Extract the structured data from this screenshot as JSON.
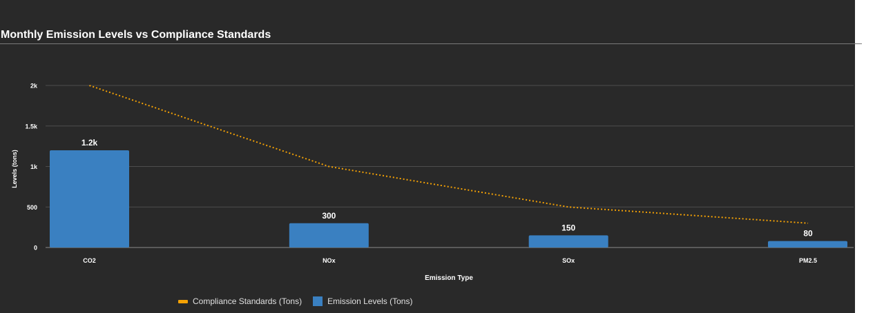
{
  "colors": {
    "background": "#292929",
    "bar": "#3a80c1",
    "line": "#f5a205",
    "grid": "#4d4d4d",
    "text": "#ffffff"
  },
  "chart_data": {
    "type": "bar",
    "title": "Monthly Emission Levels vs Compliance Standards",
    "xlabel": "Emission Type",
    "ylabel": "Levels (tons)",
    "categories": [
      "CO2",
      "NOx",
      "SOx",
      "PM2.5"
    ],
    "ylim": [
      0,
      2000
    ],
    "yticks": [
      0,
      500,
      1000,
      1500,
      2000
    ],
    "ytick_labels": [
      "0",
      "500",
      "1k",
      "1.5k",
      "2k"
    ],
    "grid": true,
    "legend_position": "bottom-left",
    "series": [
      {
        "name": "Emission Levels (Tons)",
        "type": "bar",
        "values": [
          1200,
          300,
          150,
          80
        ],
        "data_labels": [
          "1.2k",
          "300",
          "150",
          "80"
        ]
      },
      {
        "name": "Compliance Standards (Tons)",
        "type": "line",
        "style": "dotted",
        "values": [
          2000,
          1000,
          500,
          300
        ]
      }
    ],
    "legend": [
      "Compliance Standards (Tons)",
      "Emission Levels (Tons)"
    ]
  }
}
